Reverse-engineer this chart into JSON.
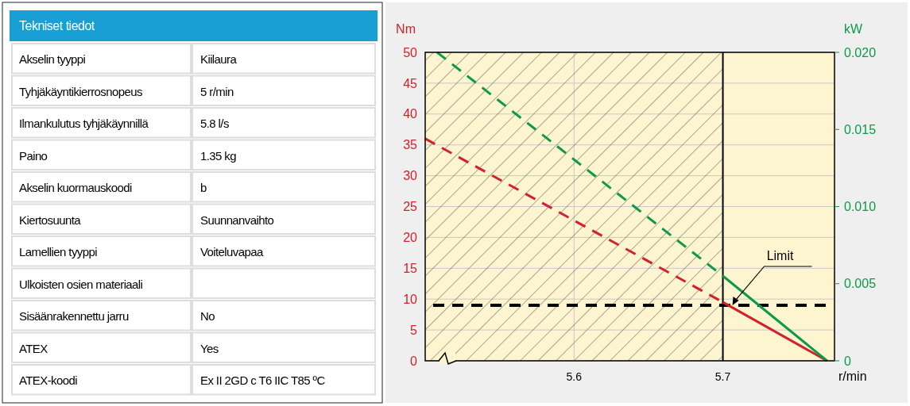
{
  "chart_data": [
    {
      "type": "other",
      "title": "Tekniset tiedot",
      "categories": [
        "Akselin tyyppi",
        "Tyhjäkäyntikierrosnopeus",
        "Ilmankulutus tyhjäkäynnillä",
        "Paino",
        "Akselin kuormauskoodi",
        "Kiertosuunta",
        "Lamellien tyyppi",
        "Ulkoisten osien materiaali",
        "Sisäänrakennettu jarru",
        "ATEX",
        "ATEX-koodi"
      ],
      "value_labels": [
        "Kiilaura",
        "5 r/min",
        "5.8 l/s",
        "1.35 kg",
        "b",
        "Suunnanvaihto",
        "Voiteluvapaa",
        null,
        "No",
        "Yes",
        "Ex II 2GD c T6 IIC T85 ºC"
      ]
    },
    {
      "type": "line",
      "xlabel": "r/min",
      "ylabel": "Nm",
      "y2label": "kW",
      "xlim": [
        5.5,
        5.775
      ],
      "xticks": [
        5.6,
        5.7
      ],
      "ylim": [
        0,
        50
      ],
      "yticks": [
        0,
        5,
        10,
        15,
        20,
        25,
        30,
        35,
        40,
        45,
        50
      ],
      "y2lim": [
        0,
        0.02
      ],
      "y2ticks": [
        0,
        0.005,
        {
          "value": 0.01,
          "label": "0.010"
        },
        0.015,
        {
          "value": 0.02,
          "label": "0.020"
        }
      ],
      "grid": true,
      "series": [
        {
          "color": "#d4202a",
          "line_style": "dashed",
          "x": [
            5.5,
            5.7
          ],
          "values": [
            36,
            9.5
          ]
        },
        {
          "color": "#d4202a",
          "line_style": "solid",
          "x": [
            5.7,
            5.77
          ],
          "values": [
            9.5,
            0
          ]
        },
        {
          "color": "#0a9a4a",
          "line_style": "dashed",
          "axis": "y2",
          "x": [
            5.508,
            5.7
          ],
          "values": [
            0.02,
            0.0055
          ]
        },
        {
          "color": "#0a9a4a",
          "line_style": "solid",
          "axis": "y2",
          "x": [
            5.7,
            5.77
          ],
          "values": [
            0.0055,
            0
          ]
        }
      ],
      "ref_lines": [
        {
          "axis": "y",
          "value": 9,
          "color": "#000000",
          "line_style": "dashed"
        },
        {
          "axis": "x",
          "value": 5.7,
          "color": "#000000",
          "line_style": "solid"
        }
      ],
      "bands": [
        {
          "axis": "x",
          "from": 5.5,
          "to": 5.7,
          "color": "#555555"
        }
      ],
      "annotations": [
        "Limit"
      ]
    }
  ]
}
